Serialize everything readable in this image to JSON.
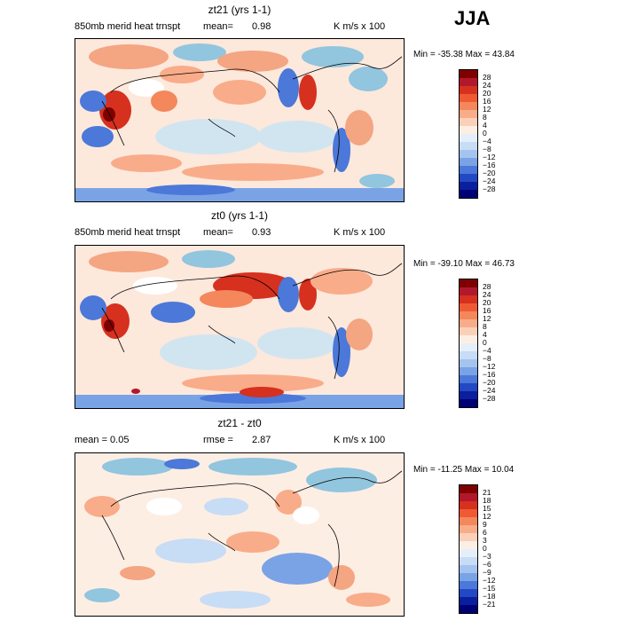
{
  "season": "JJA",
  "panels": [
    {
      "title": "zt21 (yrs 1-1)",
      "left_text": "850mb merid heat trnspt",
      "mean_label": "mean=",
      "mean_value": "0.98",
      "units": "K m/s x 100",
      "minmax": "Min = -35.38 Max =  43.84",
      "colorbar": {
        "labels": [
          "28",
          "24",
          "20",
          "16",
          "12",
          "8",
          "4",
          "0",
          "−4",
          "−8",
          "−12",
          "−16",
          "−20",
          "−24",
          "−28"
        ],
        "colors": [
          "#7f0000",
          "#b2182b",
          "#d6301f",
          "#ef5a34",
          "#f4875c",
          "#f9ac89",
          "#fbd0b9",
          "#fdeee4",
          "#e4effb",
          "#c7dcf5",
          "#a4c4ef",
          "#7aa3e6",
          "#4b78d9",
          "#2348c4",
          "#0a1f9e",
          "#000075"
        ]
      }
    },
    {
      "title": "zt0 (yrs 1-1)",
      "left_text": "850mb merid heat trnspt",
      "mean_label": "mean=",
      "mean_value": "0.93",
      "units": "K m/s x 100",
      "minmax": "Min = -39.10 Max =  46.73",
      "colorbar": {
        "labels": [
          "28",
          "24",
          "20",
          "16",
          "12",
          "8",
          "4",
          "0",
          "−4",
          "−8",
          "−12",
          "−16",
          "−20",
          "−24",
          "−28"
        ],
        "colors": [
          "#7f0000",
          "#b2182b",
          "#d6301f",
          "#ef5a34",
          "#f4875c",
          "#f9ac89",
          "#fbd0b9",
          "#fdeee4",
          "#e4effb",
          "#c7dcf5",
          "#a4c4ef",
          "#7aa3e6",
          "#4b78d9",
          "#2348c4",
          "#0a1f9e",
          "#000075"
        ]
      }
    },
    {
      "title": "zt21 - zt0",
      "left_text": "mean =    0.05",
      "mean_label": "rmse =",
      "mean_value": "2.87",
      "units": "K m/s x 100",
      "minmax": "Min = -11.25 Max =  10.04",
      "colorbar": {
        "labels": [
          "21",
          "18",
          "15",
          "12",
          "9",
          "6",
          "3",
          "0",
          "−3",
          "−6",
          "−9",
          "−12",
          "−15",
          "−18",
          "−21"
        ],
        "colors": [
          "#7f0000",
          "#b2182b",
          "#d6301f",
          "#ef5a34",
          "#f4875c",
          "#f9ac89",
          "#fbd0b9",
          "#fdeee4",
          "#e4effb",
          "#c7dcf5",
          "#a4c4ef",
          "#7aa3e6",
          "#4b78d9",
          "#2348c4",
          "#0a1f9e",
          "#000075"
        ]
      }
    }
  ]
}
